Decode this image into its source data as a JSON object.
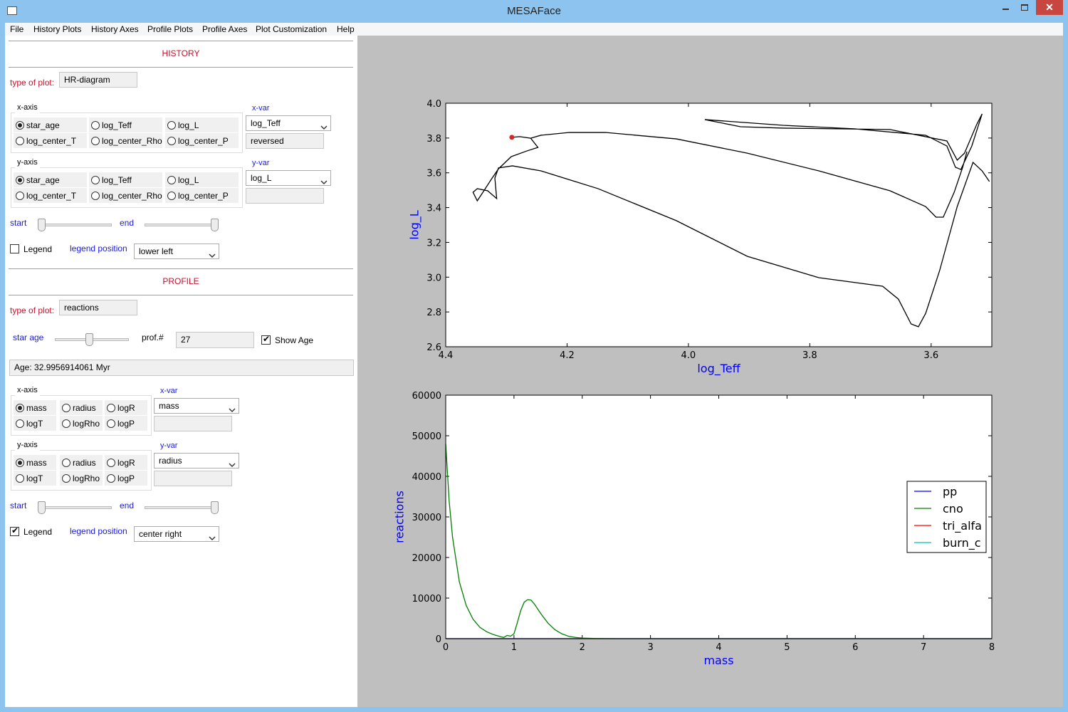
{
  "window": {
    "title": "MESAFace"
  },
  "menu": [
    "File",
    "History Plots",
    "History Axes",
    "Profile Plots",
    "Profile Axes",
    "Plot Customization",
    "Help"
  ],
  "history": {
    "heading": "HISTORY",
    "plot_type": {
      "label": "type of plot:",
      "value": "HR-diagram"
    },
    "x_axis": {
      "label": "x-axis",
      "options": [
        {
          "label": "star_age",
          "checked": true
        },
        {
          "label": "log_Teff",
          "checked": false
        },
        {
          "label": "log_L",
          "checked": false
        },
        {
          "label": "log_center_T",
          "checked": false
        },
        {
          "label": "log_center_Rho",
          "checked": false
        },
        {
          "label": "log_center_P",
          "checked": false
        }
      ]
    },
    "x_var": {
      "label": "x-var",
      "value": "log_Teff",
      "option": "reversed"
    },
    "y_axis": {
      "label": "y-axis",
      "options": [
        {
          "label": "star_age",
          "checked": true
        },
        {
          "label": "log_Teff",
          "checked": false
        },
        {
          "label": "log_L",
          "checked": false
        },
        {
          "label": "log_center_T",
          "checked": false
        },
        {
          "label": "log_center_Rho",
          "checked": false
        },
        {
          "label": "log_center_P",
          "checked": false
        }
      ]
    },
    "y_var": {
      "label": "y-var",
      "value": "log_L"
    },
    "start": "start",
    "end": "end",
    "legend": {
      "label": "Legend",
      "checked": false
    },
    "legend_position": {
      "label": "legend position",
      "value": "lower left"
    }
  },
  "profile": {
    "heading": "PROFILE",
    "plot_type": {
      "label": "type of plot:",
      "value": "reactions"
    },
    "star_age": "star age",
    "prof": {
      "label": "prof.#",
      "value": 27
    },
    "show_age": {
      "label": "Show Age",
      "checked": true
    },
    "age": "Age: 32.9956914061  Myr",
    "x_axis": {
      "label": "x-axis",
      "options": [
        {
          "label": "mass",
          "checked": true
        },
        {
          "label": "radius",
          "checked": false
        },
        {
          "label": "logR",
          "checked": false
        },
        {
          "label": "logT",
          "checked": false
        },
        {
          "label": "logRho",
          "checked": false
        },
        {
          "label": "logP",
          "checked": false
        }
      ]
    },
    "x_var": {
      "label": "x-var",
      "value": "mass"
    },
    "y_axis": {
      "label": "y-axis",
      "options": [
        {
          "label": "mass",
          "checked": true
        },
        {
          "label": "radius",
          "checked": false
        },
        {
          "label": "logR",
          "checked": false
        },
        {
          "label": "logT",
          "checked": false
        },
        {
          "label": "logRho",
          "checked": false
        },
        {
          "label": "logP",
          "checked": false
        }
      ]
    },
    "y_var": {
      "label": "y-var",
      "value": "radius"
    },
    "start": "start",
    "end": "end",
    "legend": {
      "label": "Legend",
      "checked": true
    },
    "legend_position": {
      "label": "legend position",
      "value": "center right"
    }
  },
  "chart_data": [
    {
      "type": "line",
      "x_label": "log_Teff",
      "y_label": "log_L",
      "label_color": "#0000ff",
      "x": [
        4.291,
        4.278,
        4.26,
        4.248,
        4.266,
        4.292,
        4.313,
        4.325,
        4.337,
        4.348,
        4.355,
        4.348,
        4.331,
        4.316,
        4.319,
        4.313,
        4.29,
        4.243,
        4.149,
        4.02,
        3.903,
        3.785,
        3.68,
        3.654,
        3.633,
        3.621,
        3.609,
        3.586,
        3.557,
        3.531,
        3.516,
        3.504,
        null,
        4.26,
        4.243,
        4.196,
        4.137,
        4.02,
        3.903,
        3.785,
        3.668,
        3.609,
        3.592,
        3.58,
        3.562,
        3.548,
        3.541,
        null,
        3.973,
        3.844,
        3.727,
        3.609,
        3.574,
        3.56,
        3.551,
        3.533,
        3.516,
        3.525,
        3.545,
        3.557,
        3.574,
        3.668,
        3.844,
        3.914,
        3.973
      ],
      "series": [
        {
          "color": "#000000",
          "values": [
            3.804,
            3.808,
            3.799,
            3.746,
            3.726,
            3.693,
            3.623,
            3.562,
            3.497,
            3.439,
            3.488,
            3.509,
            3.497,
            3.452,
            3.57,
            3.628,
            3.64,
            3.611,
            3.509,
            3.325,
            3.12,
            2.997,
            2.948,
            2.874,
            2.731,
            2.715,
            2.792,
            3.038,
            3.406,
            3.66,
            3.611,
            3.55,
            null,
            3.799,
            3.816,
            3.832,
            3.832,
            3.795,
            3.713,
            3.611,
            3.497,
            3.406,
            3.345,
            3.345,
            3.488,
            3.632,
            3.722,
            null,
            3.906,
            3.873,
            3.853,
            3.816,
            3.754,
            3.632,
            3.619,
            3.754,
            3.939,
            3.877,
            3.713,
            3.673,
            3.783,
            3.849,
            3.857,
            3.865,
            3.906
          ]
        }
      ],
      "marker": {
        "x": 4.291,
        "y": 3.804,
        "color": "#d62728"
      },
      "xlim": [
        4.4,
        3.5
      ],
      "xticks": [
        4.4,
        4.2,
        {
          "value": 4,
          "label": "4.0"
        },
        3.8,
        3.6
      ],
      "ylim": [
        2.6,
        4.0
      ],
      "yticks": [
        2.6,
        2.8,
        {
          "value": 3,
          "label": "3.0"
        },
        3.2,
        3.4,
        3.6,
        3.8,
        {
          "value": 4,
          "label": "4.0"
        }
      ]
    },
    {
      "type": "line",
      "x_label": "mass",
      "y_label": "reactions",
      "label_color": "#0000ff",
      "x": [
        0,
        0.05,
        0.1,
        0.2,
        0.3,
        0.4,
        0.5,
        0.6,
        0.7,
        0.8,
        0.85,
        0.9,
        0.95,
        1.0,
        1.05,
        1.1,
        1.15,
        1.2,
        1.25,
        1.3,
        1.4,
        1.5,
        1.6,
        1.7,
        1.8,
        1.9,
        2.0,
        2.2,
        2.5,
        3,
        4,
        5,
        6,
        7,
        8
      ],
      "series": [
        {
          "name": "pp",
          "color": "#0000ff",
          "values": [
            0,
            0,
            0,
            0,
            0,
            0,
            0,
            0,
            0,
            0,
            0,
            0,
            0,
            0,
            0,
            0,
            0,
            0,
            0,
            0,
            0,
            0,
            0,
            0,
            0,
            0,
            0,
            0,
            0,
            0,
            0,
            0,
            0,
            0,
            0
          ]
        },
        {
          "name": "cno",
          "color": "#008000",
          "values": [
            48000,
            34000,
            25000,
            14000,
            8200,
            4800,
            2800,
            1700,
            1000,
            500,
            300,
            800,
            600,
            1200,
            4000,
            7000,
            9000,
            9600,
            9500,
            8500,
            6000,
            3800,
            2200,
            1200,
            600,
            300,
            150,
            50,
            0,
            0,
            0,
            0,
            0,
            0,
            0
          ]
        },
        {
          "name": "tri_alfa",
          "color": "#ff0000",
          "values": [
            0,
            0,
            0,
            0,
            0,
            0,
            0,
            0,
            0,
            0,
            0,
            0,
            0,
            0,
            0,
            0,
            0,
            0,
            0,
            0,
            0,
            0,
            0,
            0,
            0,
            0,
            0,
            0,
            0,
            0,
            0,
            0,
            0,
            0,
            0
          ]
        },
        {
          "name": "burn_c",
          "color": "#00bfbf",
          "values": [
            0,
            0,
            0,
            0,
            0,
            0,
            0,
            0,
            0,
            0,
            0,
            0,
            0,
            0,
            0,
            0,
            0,
            0,
            0,
            0,
            0,
            0,
            0,
            0,
            0,
            0,
            0,
            0,
            0,
            0,
            0,
            0,
            0,
            0,
            0
          ]
        }
      ],
      "xlim": [
        0,
        8
      ],
      "xticks": [
        0,
        1,
        2,
        3,
        4,
        5,
        6,
        7,
        8
      ],
      "ylim": [
        0,
        60000
      ],
      "yticks": [
        0,
        10000,
        20000,
        30000,
        40000,
        50000,
        60000
      ],
      "legend": "center right"
    }
  ]
}
